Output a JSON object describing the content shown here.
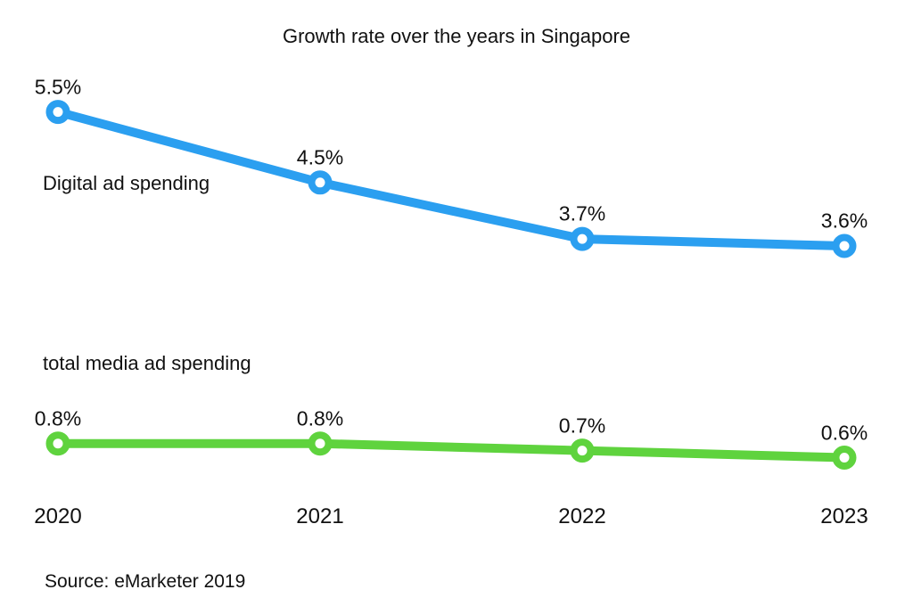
{
  "title": "Growth rate over the years in Singapore",
  "source": "Source: eMarketer 2019",
  "colors": {
    "digital_line": "#2B9FF0",
    "total_line": "#5FD33E",
    "marker_fill": "#ffffff",
    "text": "#111111",
    "background": "#ffffff"
  },
  "chart_data": {
    "type": "line",
    "title": "Growth rate over the years in Singapore",
    "categories": [
      "2020",
      "2021",
      "2022",
      "2023"
    ],
    "series": [
      {
        "name": "Digital ad spending",
        "color": "#2B9FF0",
        "values": [
          5.5,
          4.5,
          3.7,
          3.6
        ],
        "labels": [
          "5.5%",
          "4.5%",
          "3.7%",
          "3.6%"
        ]
      },
      {
        "name": "total media ad spending",
        "color": "#5FD33E",
        "values": [
          0.8,
          0.8,
          0.7,
          0.6
        ],
        "labels": [
          "0.8%",
          "0.8%",
          "0.7%",
          "0.6%"
        ]
      }
    ],
    "xlabel": "",
    "ylabel": "",
    "ylim": [
      0,
      6
    ],
    "grid": false,
    "legend": "inline-labels",
    "marker": "open-circle",
    "annotations": [
      "Source: eMarketer 2019"
    ]
  }
}
